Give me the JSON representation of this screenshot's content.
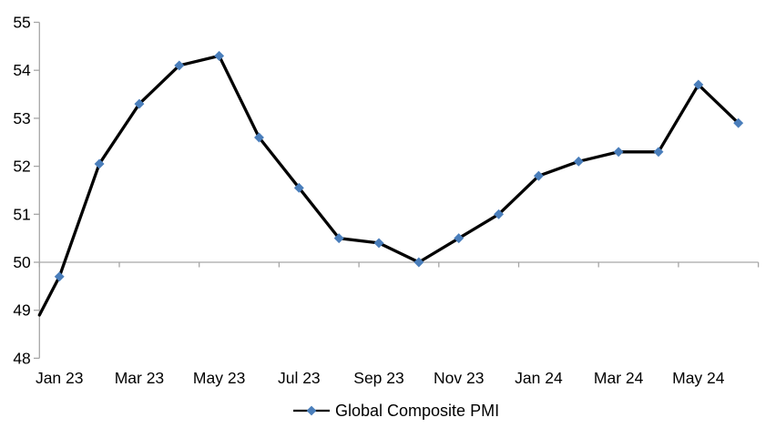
{
  "chart_data": {
    "type": "line",
    "title": "",
    "xlabel": "",
    "ylabel": "",
    "series": [
      {
        "name": "Global Composite PMI",
        "categories": [
          "Jan 23",
          "Feb 23",
          "Mar 23",
          "Apr 23",
          "May 23",
          "Jun 23",
          "Jul 23",
          "Aug 23",
          "Sep 23",
          "Oct 23",
          "Nov 23",
          "Dec 23",
          "Jan 24",
          "Feb 24",
          "Mar 24",
          "Apr 24",
          "May 24",
          "Jun 24"
        ],
        "values": [
          49.7,
          52.05,
          53.3,
          54.1,
          54.3,
          52.6,
          51.55,
          50.5,
          50.4,
          50.0,
          50.5,
          51.0,
          51.8,
          52.1,
          52.3,
          52.3,
          53.7,
          52.9
        ],
        "leading_edge_value": 48.9,
        "line_color": "#000000",
        "marker_color": "#4A7EBB",
        "marker_shape": "diamond"
      }
    ],
    "x_tick_labels": [
      "Jan 23",
      "Mar 23",
      "May 23",
      "Jul 23",
      "Sep 23",
      "Nov 23",
      "Jan 24",
      "Mar 24",
      "May 24"
    ],
    "x_label_every_n_categories": 2,
    "y_ticks": [
      48,
      49,
      50,
      51,
      52,
      53,
      54,
      55
    ],
    "ylim": [
      48,
      55
    ],
    "x_axis_crosses_at": 50,
    "gridlines": "off",
    "axis_color": "#A6A6A6",
    "legend": {
      "position": "bottom-center",
      "label": "Global Composite PMI"
    }
  }
}
